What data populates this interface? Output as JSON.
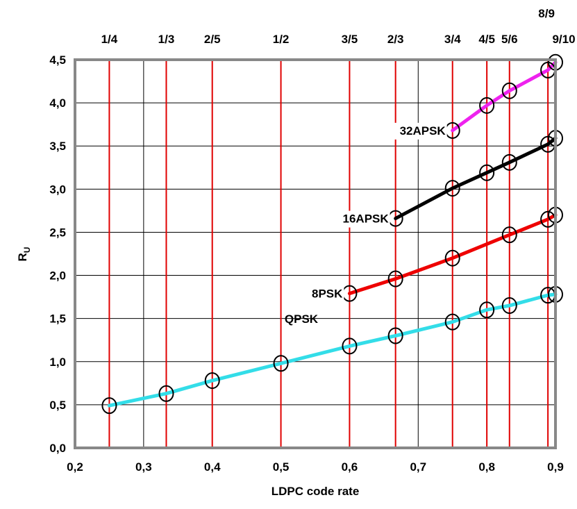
{
  "chart_data": {
    "type": "line",
    "xlabel": "LDPC code rate",
    "ylabel": {
      "main": "R",
      "sub": "U"
    },
    "xlim": [
      0.2,
      0.9
    ],
    "ylim": [
      0.0,
      4.5
    ],
    "x_ticks": [
      0.2,
      0.3,
      0.4,
      0.5,
      0.6,
      0.7,
      0.8,
      0.9
    ],
    "x_tick_labels": [
      "0,2",
      "0,3",
      "0,4",
      "0,5",
      "0,6",
      "0,7",
      "0,8",
      "0,9"
    ],
    "y_ticks": [
      0.0,
      0.5,
      1.0,
      1.5,
      2.0,
      2.5,
      3.0,
      3.5,
      4.0,
      4.5
    ],
    "y_tick_labels": [
      "0,0",
      "0,5",
      "1,0",
      "1,5",
      "2,0",
      "2,5",
      "3,0",
      "3,5",
      "4,0",
      "4,5"
    ],
    "grid": true,
    "code_rates": [
      {
        "label": "1/4",
        "x": 0.25
      },
      {
        "label": "1/3",
        "x": 0.333
      },
      {
        "label": "2/5",
        "x": 0.4
      },
      {
        "label": "1/2",
        "x": 0.5
      },
      {
        "label": "3/5",
        "x": 0.6
      },
      {
        "label": "2/3",
        "x": 0.667
      },
      {
        "label": "3/4",
        "x": 0.75
      },
      {
        "label": "4/5",
        "x": 0.8
      },
      {
        "label": "5/6",
        "x": 0.833
      },
      {
        "label": "8/9",
        "x": 0.889
      },
      {
        "label": "9/10",
        "x": 0.9
      }
    ],
    "series": [
      {
        "name": "QPSK",
        "color": "#33dde8",
        "x": [
          0.25,
          0.333,
          0.4,
          0.5,
          0.6,
          0.667,
          0.75,
          0.8,
          0.833,
          0.889,
          0.9
        ],
        "y": [
          0.49,
          0.63,
          0.78,
          0.98,
          1.18,
          1.3,
          1.46,
          1.6,
          1.65,
          1.77,
          1.78
        ]
      },
      {
        "name": "8PSK",
        "color": "#ee0000",
        "x": [
          0.6,
          0.667,
          0.75,
          0.833,
          0.889,
          0.9
        ],
        "y": [
          1.79,
          1.96,
          2.2,
          2.47,
          2.65,
          2.7
        ]
      },
      {
        "name": "16APSK",
        "color": "#000000",
        "x": [
          0.667,
          0.75,
          0.8,
          0.833,
          0.889,
          0.9
        ],
        "y": [
          2.66,
          3.01,
          3.19,
          3.31,
          3.52,
          3.59
        ]
      },
      {
        "name": "32APSK",
        "color": "#ee22ee",
        "x": [
          0.75,
          0.8,
          0.833,
          0.889,
          0.9
        ],
        "y": [
          3.68,
          3.97,
          4.14,
          4.38,
          4.47
        ]
      }
    ],
    "annotations": [
      {
        "series": "QPSK",
        "text": "QPSK"
      },
      {
        "series": "8PSK",
        "text": "8PSK"
      },
      {
        "series": "16APSK",
        "text": "16APSK"
      },
      {
        "series": "32APSK",
        "text": "32APSK"
      }
    ]
  }
}
